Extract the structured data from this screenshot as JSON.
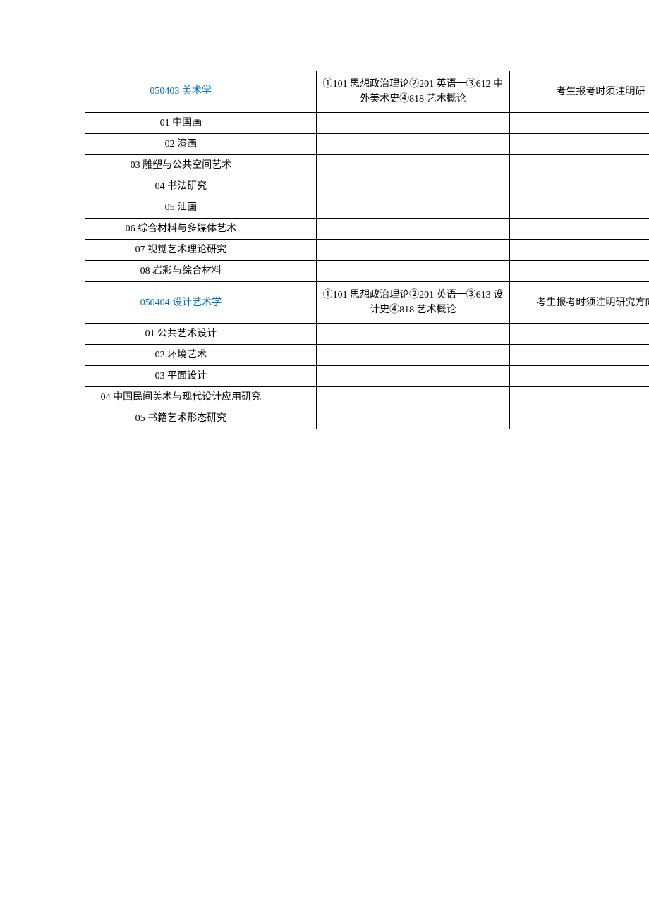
{
  "table": {
    "rows": [
      {
        "type": "header",
        "col1": "050403 美术学",
        "col1_link": true,
        "col2": "",
        "col3": "①101 思想政治理论②201 英语一③612 中外美术史④818 艺术概论",
        "col4": "考生报考时须注明研",
        "col4_cutoff": true,
        "first_row": true
      },
      {
        "type": "data",
        "col1": "01 中国画",
        "col2": "",
        "col3": "",
        "col4": ""
      },
      {
        "type": "data",
        "col1": "02 漆画",
        "col2": "",
        "col3": "",
        "col4": ""
      },
      {
        "type": "data",
        "col1": "03 雕塑与公共空间艺术",
        "col2": "",
        "col3": "",
        "col4": ""
      },
      {
        "type": "data",
        "col1": "04 书法研究",
        "col2": "",
        "col3": "",
        "col4": ""
      },
      {
        "type": "data",
        "col1": "05 油画",
        "col2": "",
        "col3": "",
        "col4": ""
      },
      {
        "type": "data",
        "col1": "06 综合材料与多媒体艺术",
        "col2": "",
        "col3": "",
        "col4": ""
      },
      {
        "type": "data",
        "col1": "07 视觉艺术理论研究",
        "col2": "",
        "col3": "",
        "col4": ""
      },
      {
        "type": "data",
        "col1": "08 岩彩与综合材料",
        "col2": "",
        "col3": "",
        "col4": ""
      },
      {
        "type": "header",
        "col1": "050404 设计艺术学",
        "col1_link": true,
        "col2": "",
        "col3": "①101 思想政治理论②201 英语一③613 设计史④818 艺术概论",
        "col4": "考生报考时须注明研究方向。"
      },
      {
        "type": "data",
        "col1": "01 公共艺术设计",
        "col2": "",
        "col3": "",
        "col4": ""
      },
      {
        "type": "data",
        "col1": "02 环境艺术",
        "col2": "",
        "col3": "",
        "col4": ""
      },
      {
        "type": "data",
        "col1": "03 平面设计",
        "col2": "",
        "col3": "",
        "col4": ""
      },
      {
        "type": "data",
        "col1": "04 中国民间美术与现代设计应用研究",
        "col2": "",
        "col3": "",
        "col4": ""
      },
      {
        "type": "data",
        "col1": "05 书籍艺术形态研究",
        "col2": "",
        "col3": "",
        "col4": ""
      }
    ]
  },
  "colors": {
    "link": "#0070c0",
    "text": "#000000",
    "border": "#000000",
    "background": "#ffffff"
  }
}
